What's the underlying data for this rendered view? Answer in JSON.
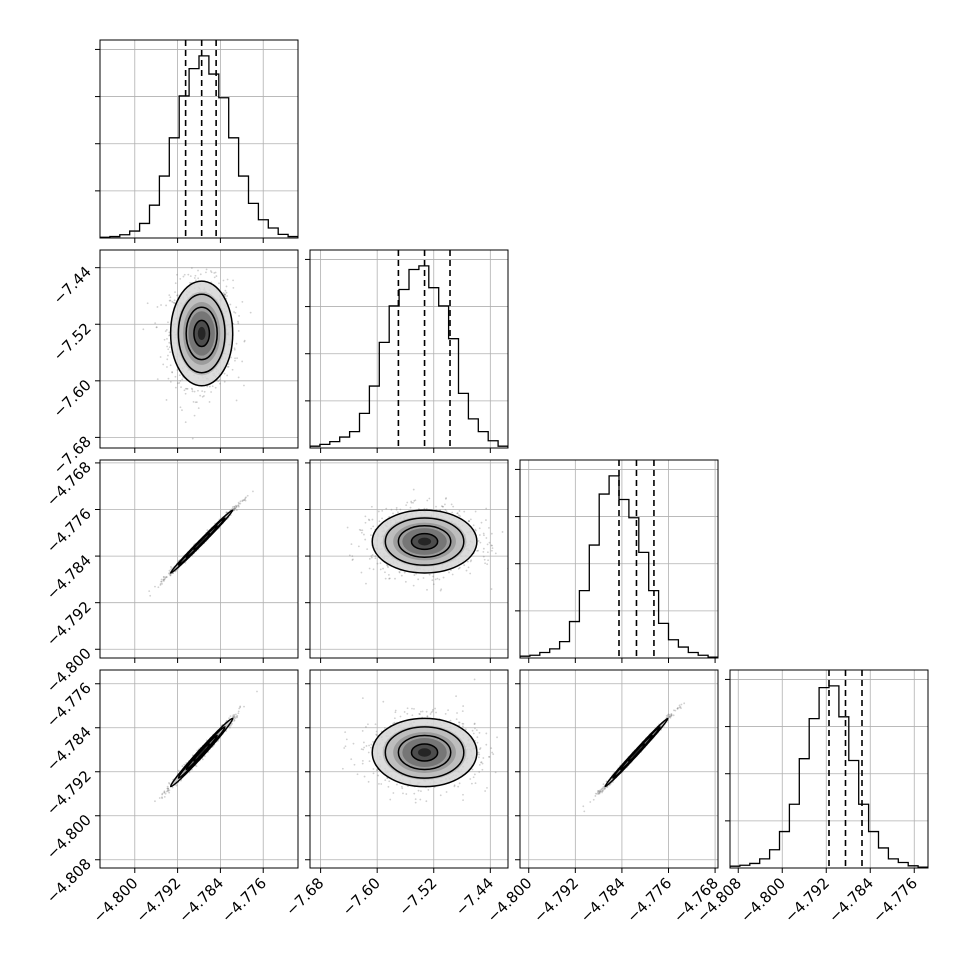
{
  "chart_data": {
    "type": "corner",
    "parameters": [
      {
        "range": [
          -4.8065,
          -4.7695
        ],
        "ticks": [
          -4.8,
          -4.792,
          -4.784,
          -4.776
        ],
        "tick_labels": [
          "−4.800",
          "−4.792",
          "−4.784",
          "−4.776"
        ],
        "mean": -4.7875,
        "sigma": 0.0029,
        "quantiles": [
          -4.7905,
          -4.7875,
          -4.7848
        ],
        "hist_bins": [
          0.004,
          0.008,
          0.018,
          0.038,
          0.08,
          0.18,
          0.34,
          0.55,
          0.78,
          0.93,
          1.0,
          0.9,
          0.77,
          0.55,
          0.34,
          0.19,
          0.1,
          0.055,
          0.02,
          0.008
        ]
      },
      {
        "range": [
          -7.695,
          -7.415
        ],
        "ticks": [
          -7.68,
          -7.6,
          -7.52,
          -7.44
        ],
        "tick_labels": [
          "−7.68",
          "−7.60",
          "−7.52",
          "−7.44"
        ],
        "mean": -7.533,
        "sigma": 0.037,
        "quantiles": [
          -7.57,
          -7.533,
          -7.497
        ],
        "hist_bins": [
          0.01,
          0.02,
          0.035,
          0.06,
          0.09,
          0.19,
          0.34,
          0.58,
          0.78,
          0.87,
          0.98,
          1.0,
          0.88,
          0.78,
          0.6,
          0.3,
          0.16,
          0.09,
          0.04,
          0.01
        ]
      },
      {
        "range": [
          -4.8015,
          -4.7675
        ],
        "ticks": [
          -4.8,
          -4.792,
          -4.784,
          -4.776,
          -4.768
        ],
        "tick_labels": [
          "−4.800",
          "−4.792",
          "−4.784",
          "−4.776",
          "−4.768"
        ],
        "mean": -4.7815,
        "sigma": 0.0027,
        "quantiles": [
          -4.7845,
          -4.7815,
          -4.7785
        ],
        "hist_bins": [
          0.01,
          0.015,
          0.03,
          0.05,
          0.09,
          0.2,
          0.37,
          0.62,
          0.9,
          1.0,
          0.87,
          0.77,
          0.58,
          0.37,
          0.19,
          0.1,
          0.06,
          0.03,
          0.015,
          0.005
        ]
      },
      {
        "range": [
          -4.8095,
          -4.7735
        ],
        "ticks": [
          -4.808,
          -4.8,
          -4.792,
          -4.784,
          -4.776
        ],
        "tick_labels": [
          "−4.808",
          "−4.800",
          "−4.792",
          "−4.784",
          "−4.776"
        ],
        "mean": -4.7885,
        "sigma": 0.0031,
        "quantiles": [
          -4.7915,
          -4.7885,
          -4.7855
        ],
        "hist_bins": [
          0.01,
          0.015,
          0.025,
          0.05,
          0.1,
          0.2,
          0.35,
          0.6,
          0.82,
          0.99,
          1.0,
          0.83,
          0.59,
          0.35,
          0.2,
          0.11,
          0.05,
          0.03,
          0.012,
          0.005
        ]
      }
    ],
    "correlations": {
      "1-0": 0.0,
      "2-0": 0.995,
      "2-1": 0.0,
      "3-0": 0.99,
      "3-1": 0.0,
      "3-2": 0.995
    },
    "contour_levels_sigma": [
      0.5,
      1.0,
      1.5,
      2.0
    ],
    "n_scatter_samples": 1200,
    "grid": true
  }
}
